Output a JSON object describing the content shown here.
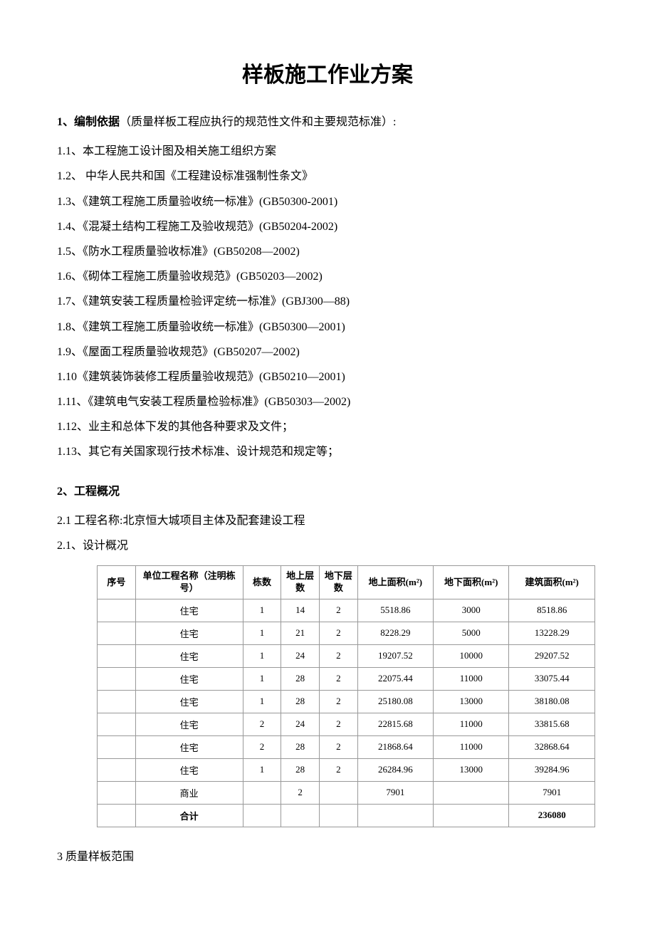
{
  "page": {
    "title": "样板施工作业方案",
    "section1": {
      "heading_bold": "1、编制依据",
      "heading_rest": "（质量样板工程应执行的规范性文件和主要规范标准）:",
      "items": [
        "1.1、本工程施工设计图及相关施工组织方案",
        "1.2、 中华人民共和国《工程建设标准强制性条文》",
        "1.3、《建筑工程施工质量验收统一标准》(GB50300-2001)",
        "1.4、《混凝土结构工程施工及验收规范》(GB50204-2002)",
        "1.5、《防水工程质量验收标准》(GB50208—2002)",
        "1.6、《砌体工程施工质量验收规范》(GB50203—2002)",
        "1.7、《建筑安装工程质量检验评定统一标准》(GBJ300—88)",
        "1.8、《建筑工程施工质量验收统一标准》(GB50300—2001)",
        "1.9、《屋面工程质量验收规范》(GB50207—2002)",
        "1.10《建筑装饰装修工程质量验收规范》(GB50210—2001)",
        "1.11、《建筑电气安装工程质量检验标准》(GB50303—2002)",
        "1.12、业主和总体下发的其他各种要求及文件；",
        "1.13、其它有关国家现行技术标准、设计规范和规定等；"
      ]
    },
    "section2": {
      "heading": "2、工程概况",
      "sub21": "2.1 工程名称:北京恒大城项目主体及配套建设工程",
      "sub22": "2.1、设计概况"
    },
    "table": {
      "headers": {
        "seq": "序号",
        "name": "单位工程名称（注明栋号）",
        "dong": "栋数",
        "up_floor": "地上层数",
        "down_floor": "地下层数",
        "up_area": "地上面积(m²)",
        "down_area": "地下面积(m²)",
        "total_area": "建筑面积(m²)"
      },
      "rows": [
        {
          "seq": "",
          "name": "住宅",
          "dong": "1",
          "up": "14",
          "down": "2",
          "upa": "5518.86",
          "downa": "3000",
          "total": "8518.86",
          "bold": false
        },
        {
          "seq": "",
          "name": "住宅",
          "dong": "1",
          "up": "21",
          "down": "2",
          "upa": "8228.29",
          "downa": "5000",
          "total": "13228.29",
          "bold": false
        },
        {
          "seq": "",
          "name": "住宅",
          "dong": "1",
          "up": "24",
          "down": "2",
          "upa": "19207.52",
          "downa": "10000",
          "total": "29207.52",
          "bold": false
        },
        {
          "seq": "",
          "name": "住宅",
          "dong": "1",
          "up": "28",
          "down": "2",
          "upa": "22075.44",
          "downa": "11000",
          "total": "33075.44",
          "bold": false
        },
        {
          "seq": "",
          "name": "住宅",
          "dong": "1",
          "up": "28",
          "down": "2",
          "upa": "25180.08",
          "downa": "13000",
          "total": "38180.08",
          "bold": false
        },
        {
          "seq": "",
          "name": "住宅",
          "dong": "2",
          "up": "24",
          "down": "2",
          "upa": "22815.68",
          "downa": "11000",
          "total": "33815.68",
          "bold": false
        },
        {
          "seq": "",
          "name": "住宅",
          "dong": "2",
          "up": "28",
          "down": "2",
          "upa": "21868.64",
          "downa": "11000",
          "total": "32868.64",
          "bold": false
        },
        {
          "seq": "",
          "name": "住宅",
          "dong": "1",
          "up": "28",
          "down": "2",
          "upa": "26284.96",
          "downa": "13000",
          "total": "39284.96",
          "bold": false
        },
        {
          "seq": "",
          "name": "商业",
          "dong": "",
          "up": "2",
          "down": "",
          "upa": "7901",
          "downa": "",
          "total": "7901",
          "bold": false
        },
        {
          "seq": "",
          "name": "合计",
          "dong": "",
          "up": "",
          "down": "",
          "upa": "",
          "downa": "",
          "total": "236080",
          "bold": true
        }
      ]
    },
    "section3": {
      "heading": "3 质量样板范围"
    }
  }
}
